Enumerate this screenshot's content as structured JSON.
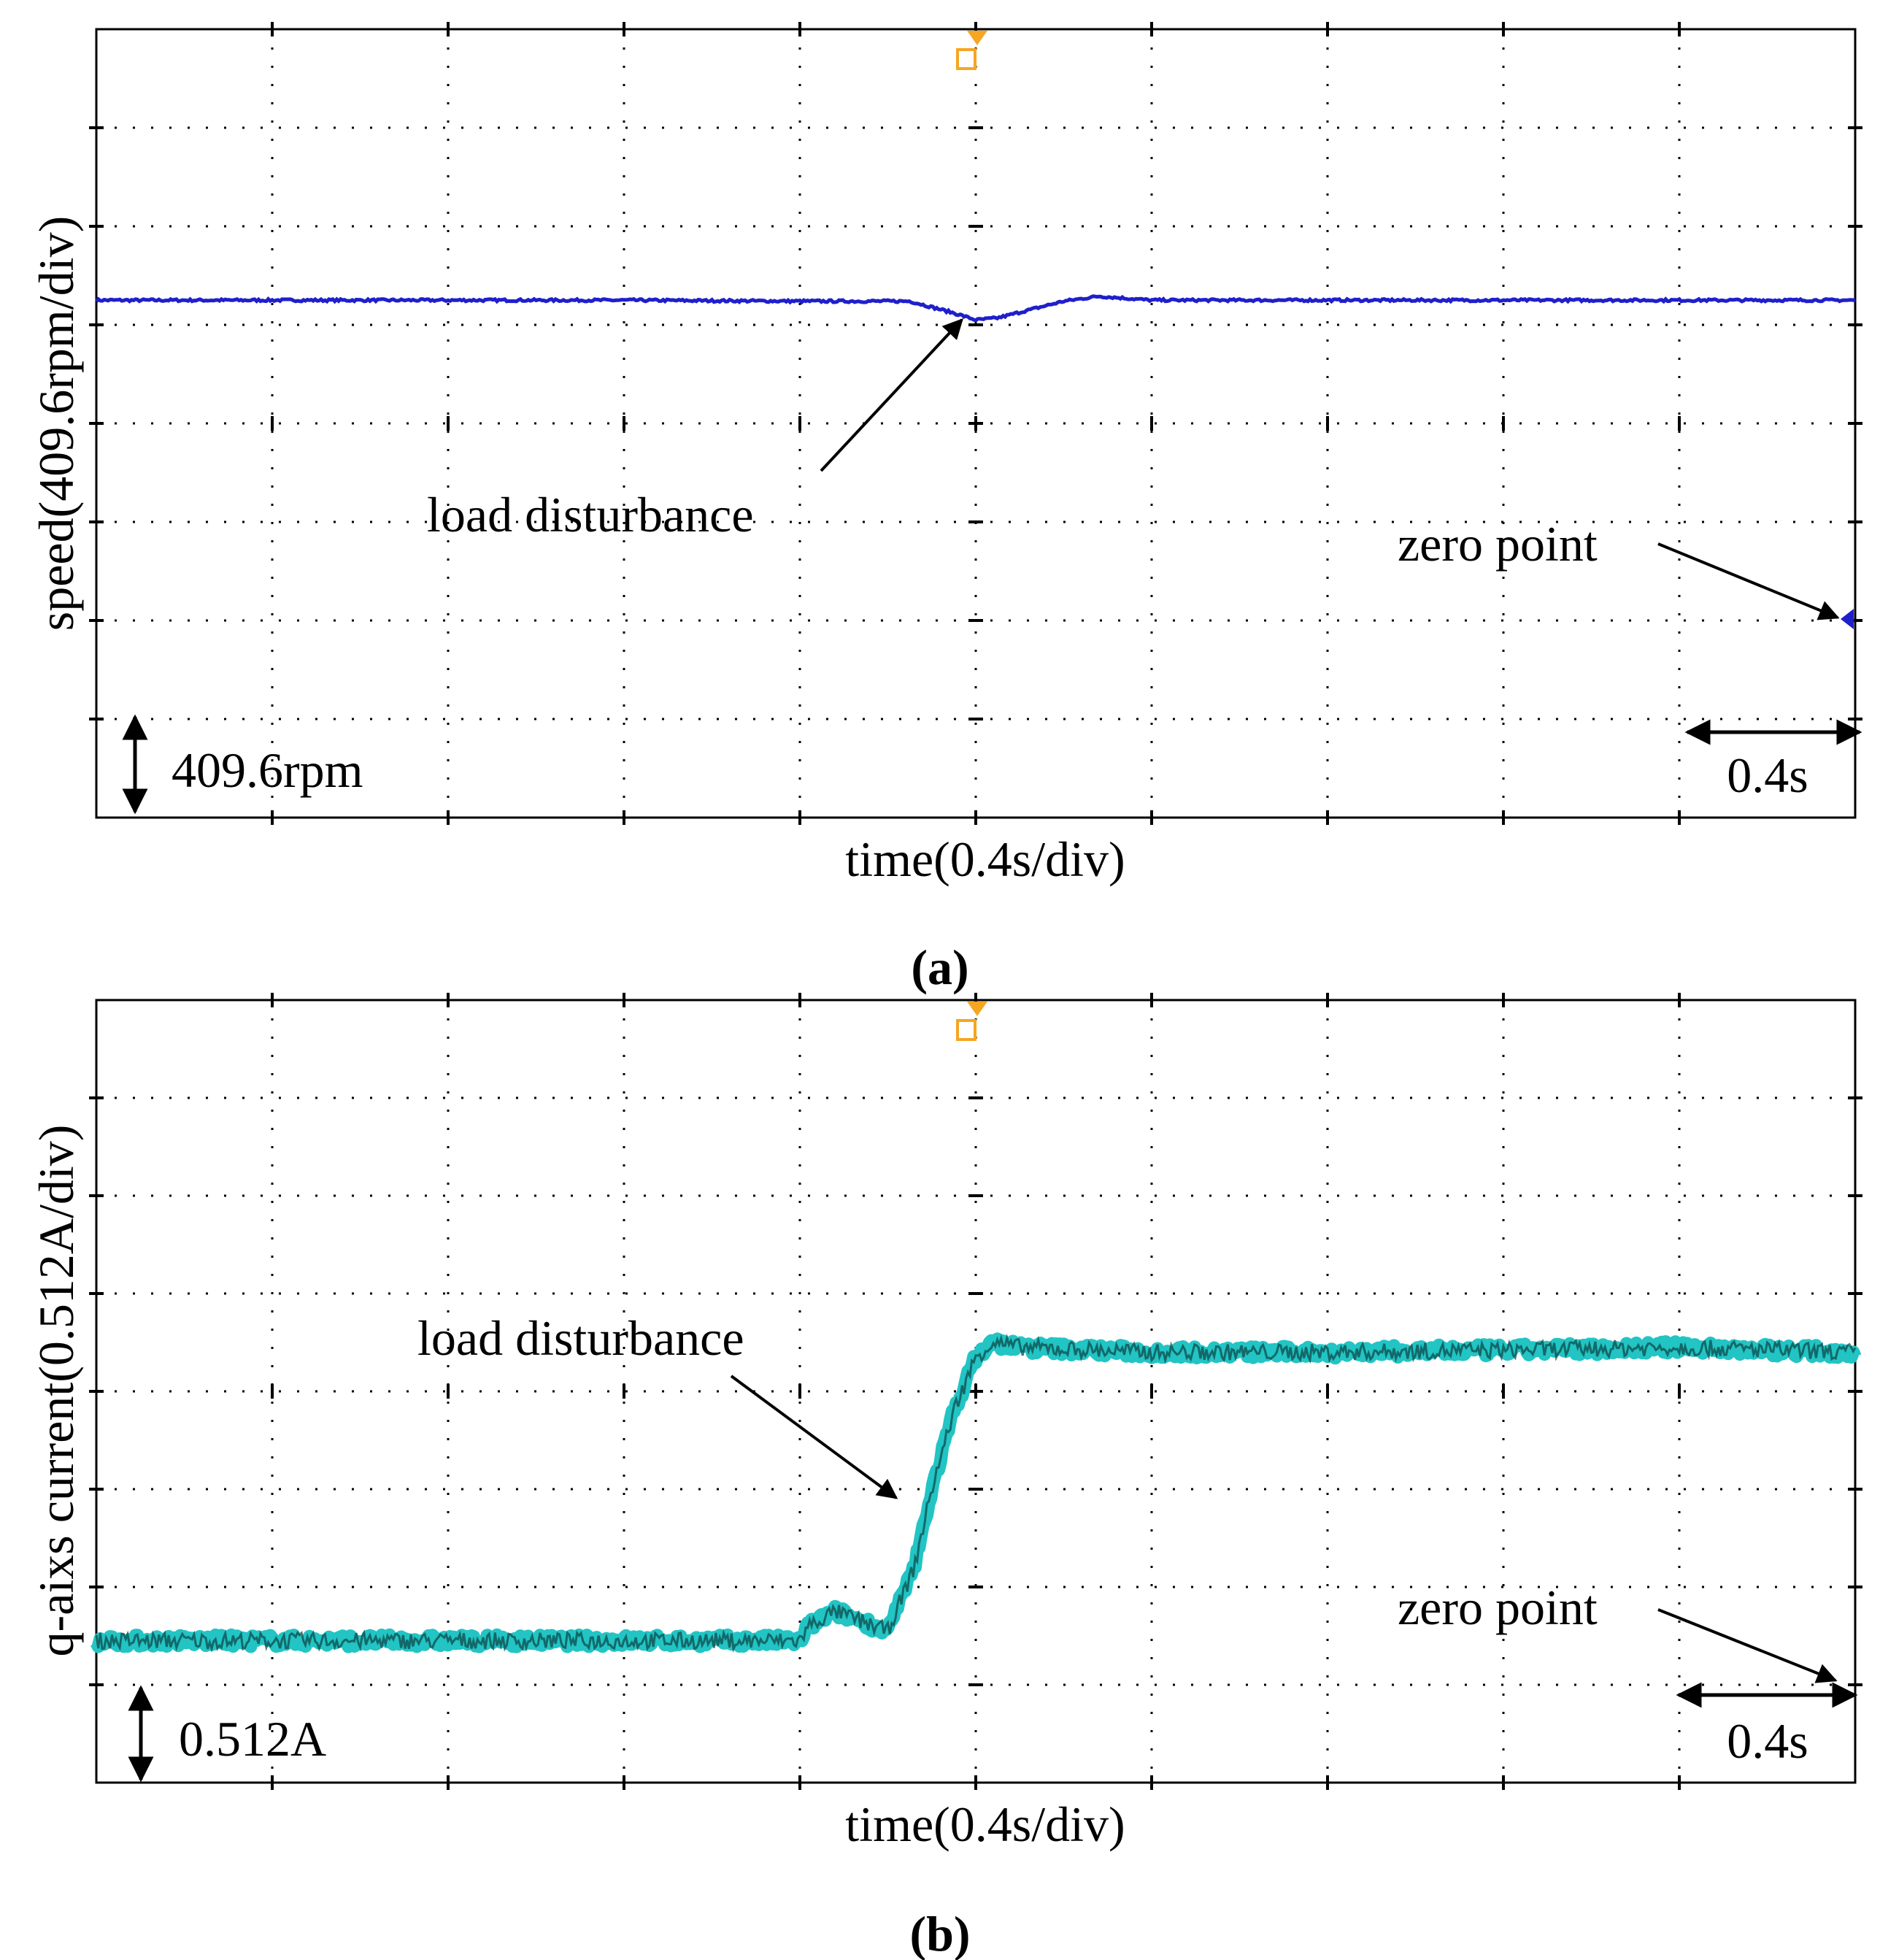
{
  "chart_data": [
    {
      "panel": "a",
      "type": "line",
      "caption": "(a)",
      "xlabel": "time(0.4s/div)",
      "ylabel": "speed(409.6rpm/div)",
      "x_divisions": 10,
      "y_divisions": 8,
      "x_unit_per_div": 0.4,
      "y_unit_per_div": 409.6,
      "xlim": [
        0,
        4.0
      ],
      "ylim_div": [
        -2,
        6
      ],
      "zero_point_div": 0,
      "trigger_time": 2.0,
      "trace_color": "#1f1fcc",
      "series": [
        {
          "name": "speed",
          "x": [
            0.0,
            0.4,
            0.8,
            1.2,
            1.6,
            1.85,
            1.95,
            2.0,
            2.05,
            2.12,
            2.2,
            2.28,
            2.4,
            2.8,
            3.2,
            3.6,
            4.0
          ],
          "y_div": [
            3.25,
            3.25,
            3.25,
            3.25,
            3.24,
            3.24,
            3.12,
            3.05,
            3.07,
            3.15,
            3.24,
            3.29,
            3.25,
            3.25,
            3.25,
            3.25,
            3.25
          ]
        }
      ],
      "annotations": {
        "disturbance": "load disturbance",
        "zero": "zero point",
        "scale_v": "409.6rpm",
        "scale_h": "0.4s"
      }
    },
    {
      "panel": "b",
      "type": "line",
      "caption": "(b)",
      "xlabel": "time(0.4s/div)",
      "ylabel": "q-aixs current(0.512A/div)",
      "x_divisions": 10,
      "y_divisions": 8,
      "x_unit_per_div": 0.4,
      "y_unit_per_div": 0.512,
      "xlim": [
        0,
        4.0
      ],
      "ylim_div": [
        -1,
        7
      ],
      "zero_point_div": 0,
      "trigger_time": 2.0,
      "trace_color": "#22c4c4",
      "series": [
        {
          "name": "q-axis current",
          "x": [
            0.0,
            0.4,
            0.8,
            1.2,
            1.6,
            1.62,
            1.68,
            1.74,
            1.8,
            1.86,
            1.9,
            1.95,
            2.0,
            2.04,
            2.1,
            2.4,
            2.8,
            3.2,
            3.6,
            4.0
          ],
          "y_div": [
            0.45,
            0.45,
            0.45,
            0.45,
            0.45,
            0.6,
            0.75,
            0.65,
            0.55,
            1.2,
            2.0,
            2.8,
            3.35,
            3.5,
            3.45,
            3.4,
            3.4,
            3.42,
            3.45,
            3.4
          ]
        }
      ],
      "annotations": {
        "disturbance": "load disturbance",
        "zero": "zero point",
        "scale_v": "0.512A",
        "scale_h": "0.4s"
      }
    }
  ]
}
